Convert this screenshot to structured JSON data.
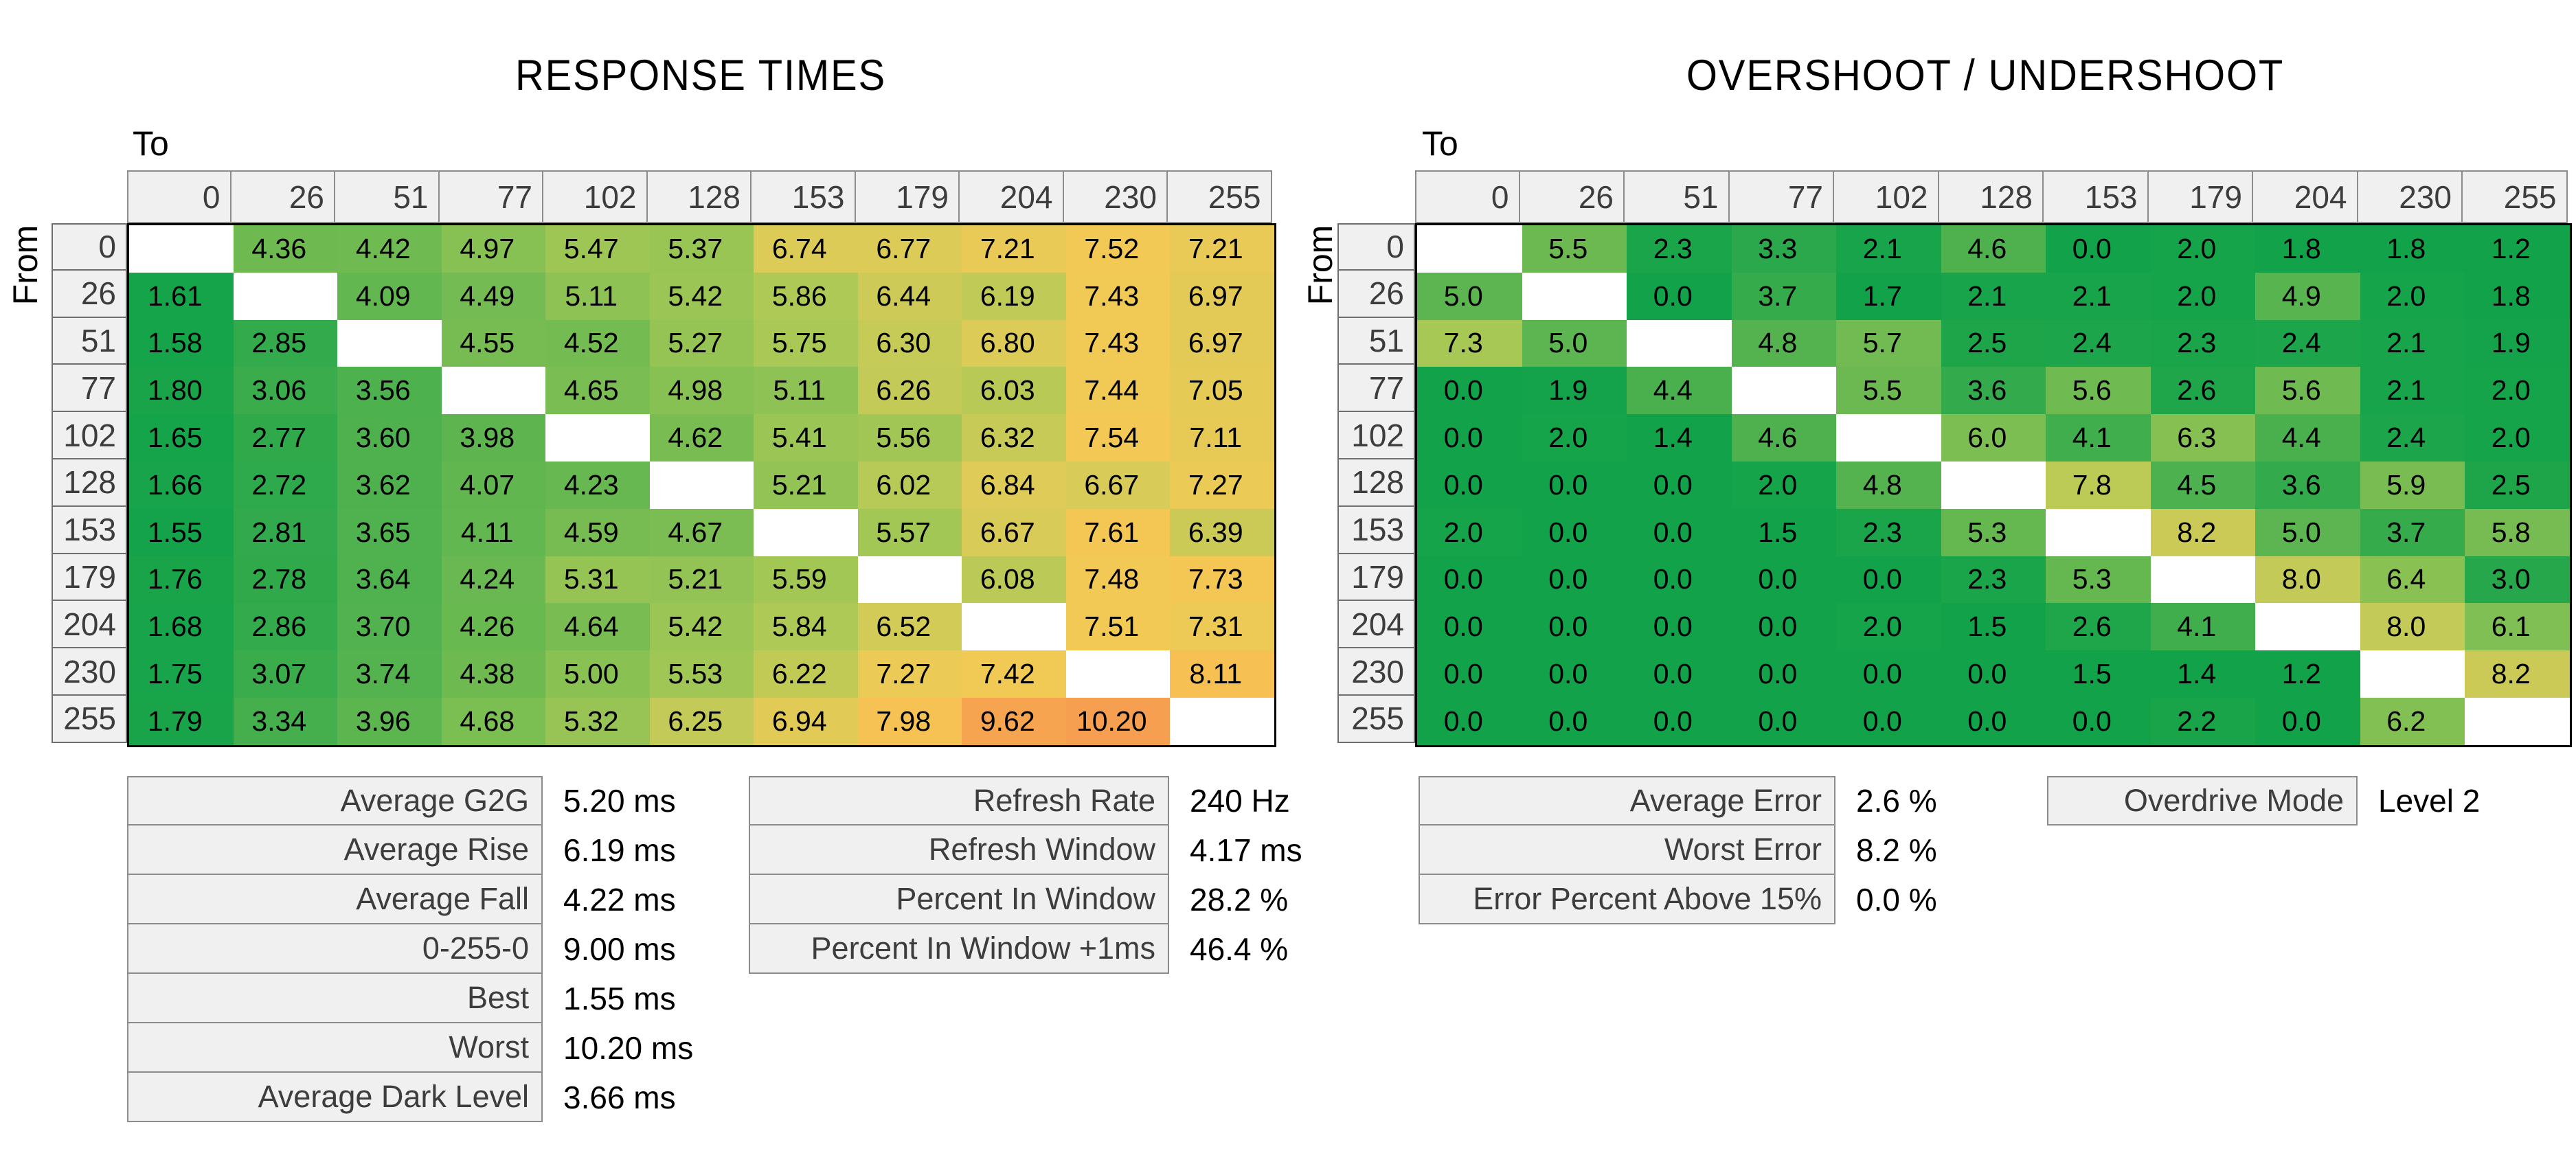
{
  "axis_labels": {
    "to": "To",
    "from": "From"
  },
  "chart_data": [
    {
      "type": "heatmap",
      "id": "response-times",
      "title": "RESPONSE TIMES",
      "unit": "ms",
      "value_decimals": 2,
      "x_axis_label": "To",
      "y_axis_label": "From",
      "categories": [
        0,
        26,
        51,
        77,
        102,
        128,
        153,
        179,
        204,
        230,
        255
      ],
      "rows": [
        [
          null,
          4.36,
          4.42,
          4.97,
          5.47,
          5.37,
          6.74,
          6.77,
          7.21,
          7.52,
          7.21
        ],
        [
          1.61,
          null,
          4.09,
          4.49,
          5.11,
          5.42,
          5.86,
          6.44,
          6.19,
          7.43,
          6.97
        ],
        [
          1.58,
          2.85,
          null,
          4.55,
          4.52,
          5.27,
          5.75,
          6.3,
          6.8,
          7.43,
          6.97
        ],
        [
          1.8,
          3.06,
          3.56,
          null,
          4.65,
          4.98,
          5.11,
          6.26,
          6.03,
          7.44,
          7.05
        ],
        [
          1.65,
          2.77,
          3.6,
          3.98,
          null,
          4.62,
          5.41,
          5.56,
          6.32,
          7.54,
          7.11
        ],
        [
          1.66,
          2.72,
          3.62,
          4.07,
          4.23,
          null,
          5.21,
          6.02,
          6.84,
          6.67,
          7.27
        ],
        [
          1.55,
          2.81,
          3.65,
          4.11,
          4.59,
          4.67,
          null,
          5.57,
          6.67,
          7.61,
          6.39
        ],
        [
          1.76,
          2.78,
          3.64,
          4.24,
          5.31,
          5.21,
          5.59,
          null,
          6.08,
          7.48,
          7.73
        ],
        [
          1.68,
          2.86,
          3.7,
          4.26,
          4.64,
          5.42,
          5.84,
          6.52,
          null,
          7.51,
          7.31
        ],
        [
          1.75,
          3.07,
          3.74,
          4.38,
          5.0,
          5.53,
          6.22,
          7.27,
          7.42,
          null,
          8.11
        ],
        [
          1.79,
          3.34,
          3.96,
          4.68,
          5.32,
          6.25,
          6.94,
          7.98,
          9.62,
          10.2,
          null
        ]
      ],
      "color_scale": {
        "domain": [
          1.45,
          10.75
        ],
        "stops": [
          [
            0.0,
            "#12a34a"
          ],
          [
            0.13,
            "#2ca84b"
          ],
          [
            0.25,
            "#55b34f"
          ],
          [
            0.37,
            "#84c053"
          ],
          [
            0.47,
            "#adc956"
          ],
          [
            0.56,
            "#d9cb57"
          ],
          [
            0.65,
            "#f3c955"
          ],
          [
            0.75,
            "#f8bc52"
          ],
          [
            0.86,
            "#f6a64e"
          ],
          [
            1.0,
            "#f79a52"
          ]
        ]
      }
    },
    {
      "type": "heatmap",
      "id": "overshoot",
      "title": "OVERSHOOT / UNDERSHOOT",
      "unit": "%",
      "value_decimals": 1,
      "x_axis_label": "To",
      "y_axis_label": "From",
      "categories": [
        0,
        26,
        51,
        77,
        102,
        128,
        153,
        179,
        204,
        230,
        255
      ],
      "rows": [
        [
          null,
          5.5,
          2.3,
          3.3,
          2.1,
          4.6,
          0.0,
          2.0,
          1.8,
          1.8,
          1.2
        ],
        [
          5.0,
          null,
          0.0,
          3.7,
          1.7,
          2.1,
          2.1,
          2.0,
          4.9,
          2.0,
          1.8
        ],
        [
          7.3,
          5.0,
          null,
          4.8,
          5.7,
          2.5,
          2.4,
          2.3,
          2.4,
          2.1,
          1.9
        ],
        [
          0.0,
          1.9,
          4.4,
          null,
          5.5,
          3.6,
          5.6,
          2.6,
          5.6,
          2.1,
          2.0
        ],
        [
          0.0,
          2.0,
          1.4,
          4.6,
          null,
          6.0,
          4.1,
          6.3,
          4.4,
          2.4,
          2.0
        ],
        [
          0.0,
          0.0,
          0.0,
          2.0,
          4.8,
          null,
          7.8,
          4.5,
          3.6,
          5.9,
          2.5
        ],
        [
          2.0,
          0.0,
          0.0,
          1.5,
          2.3,
          5.3,
          null,
          8.2,
          5.0,
          3.7,
          5.8
        ],
        [
          0.0,
          0.0,
          0.0,
          0.0,
          0.0,
          2.3,
          5.3,
          null,
          8.0,
          6.4,
          3.0
        ],
        [
          0.0,
          0.0,
          0.0,
          0.0,
          2.0,
          1.5,
          2.6,
          4.1,
          null,
          8.0,
          6.1
        ],
        [
          0.0,
          0.0,
          0.0,
          0.0,
          0.0,
          0.0,
          1.5,
          1.4,
          1.2,
          null,
          8.2
        ],
        [
          0.0,
          0.0,
          0.0,
          0.0,
          0.0,
          0.0,
          0.0,
          2.2,
          0.0,
          6.2,
          null
        ]
      ],
      "color_scale": {
        "domain": [
          1.8,
          13.8
        ],
        "stops": [
          [
            0.0,
            "#12a34a"
          ],
          [
            0.13,
            "#2ca84b"
          ],
          [
            0.25,
            "#55b34f"
          ],
          [
            0.37,
            "#84c053"
          ],
          [
            0.47,
            "#adc956"
          ],
          [
            0.56,
            "#d9cb57"
          ],
          [
            0.65,
            "#f3c955"
          ],
          [
            0.75,
            "#f8bc52"
          ],
          [
            0.86,
            "#f6a64e"
          ],
          [
            1.0,
            "#f79a52"
          ]
        ]
      }
    }
  ],
  "summary_tables": {
    "response_summary": {
      "rows": [
        {
          "label": "Average G2G",
          "value": "5.20 ms"
        },
        {
          "label": "Average Rise",
          "value": "6.19 ms"
        },
        {
          "label": "Average Fall",
          "value": "4.22 ms"
        },
        {
          "label": "0-255-0",
          "value": "9.00 ms"
        },
        {
          "label": "Best",
          "value": "1.55 ms"
        },
        {
          "label": "Worst",
          "value": "10.20 ms"
        },
        {
          "label": "Average Dark Level",
          "value": "3.66 ms"
        }
      ]
    },
    "refresh_summary": {
      "rows": [
        {
          "label": "Refresh Rate",
          "value": "240 Hz"
        },
        {
          "label": "Refresh Window",
          "value": "4.17 ms"
        },
        {
          "label": "Percent In Window",
          "value": "28.2 %"
        },
        {
          "label": "Percent In Window +1ms",
          "value": "46.4 %"
        }
      ]
    },
    "error_summary": {
      "rows": [
        {
          "label": "Average Error",
          "value": "2.6 %"
        },
        {
          "label": "Worst Error",
          "value": "8.2 %"
        },
        {
          "label": "Error Percent Above 15%",
          "value": "0.0 %"
        }
      ]
    },
    "overdrive_summary": {
      "rows": [
        {
          "label": "Overdrive Mode",
          "value": "Level 2"
        }
      ]
    }
  },
  "colors": {
    "header_bg": "#f0f0f0",
    "header_text": "#3d3d3d",
    "grid_border": "#000000",
    "min_green": "#12a34a",
    "mid_yellow": "#f3c955",
    "max_orange": "#f79a52"
  }
}
